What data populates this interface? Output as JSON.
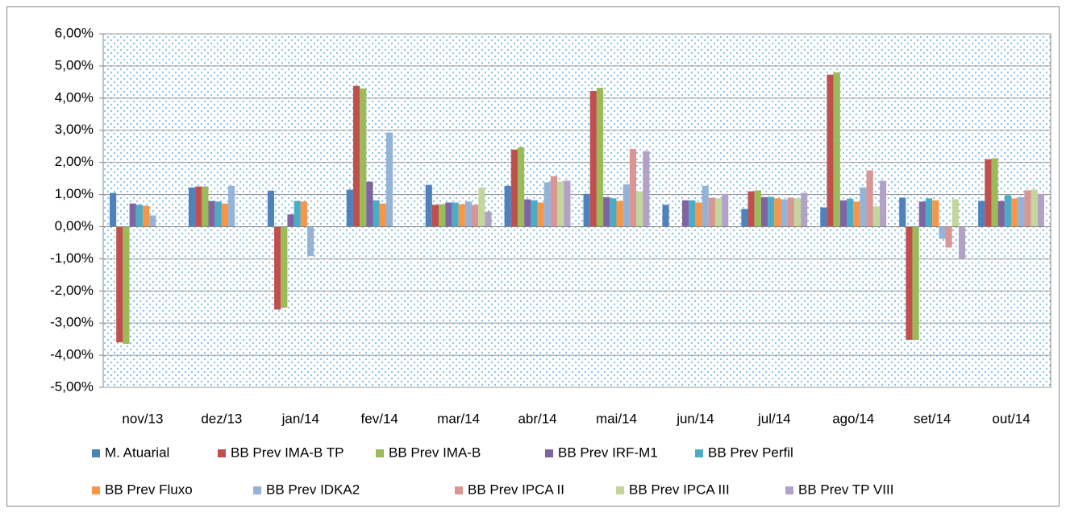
{
  "chart_data": {
    "type": "bar",
    "categories": [
      "nov/13",
      "dez/13",
      "jan/14",
      "fev/14",
      "mar/14",
      "abr/14",
      "mai/14",
      "jun/14",
      "jul/14",
      "ago/14",
      "set/14",
      "out/14"
    ],
    "series": [
      {
        "name": "M. Atuarial",
        "color": "#4f81bd",
        "values": [
          1.05,
          1.22,
          1.12,
          1.15,
          1.3,
          1.27,
          1.02,
          0.68,
          0.55,
          0.6,
          0.9,
          0.8
        ]
      },
      {
        "name": "BB Prev IMA-B TP",
        "color": "#c0504d",
        "values": [
          -3.6,
          1.25,
          -2.58,
          4.38,
          0.68,
          2.4,
          4.22,
          null,
          1.1,
          4.73,
          -3.52,
          2.1
        ]
      },
      {
        "name": "BB Prev IMA-B",
        "color": "#9bbb59",
        "values": [
          -3.65,
          1.25,
          -2.52,
          4.3,
          0.7,
          2.47,
          4.32,
          null,
          1.13,
          4.8,
          -3.52,
          2.13
        ]
      },
      {
        "name": "BB Prev IRF-M1",
        "color": "#8064a2",
        "values": [
          0.72,
          0.8,
          0.38,
          1.4,
          0.75,
          0.85,
          0.92,
          0.82,
          0.92,
          0.82,
          0.78,
          0.8
        ]
      },
      {
        "name": "BB Prev Perfil",
        "color": "#4bacc6",
        "values": [
          0.68,
          0.78,
          0.8,
          0.82,
          0.75,
          0.82,
          0.88,
          0.82,
          0.93,
          0.87,
          0.88,
          0.98
        ]
      },
      {
        "name": "BB Prev Fluxo",
        "color": "#f79646",
        "values": [
          0.65,
          0.72,
          0.78,
          0.72,
          0.7,
          0.75,
          0.8,
          0.75,
          0.88,
          0.78,
          0.82,
          0.88
        ]
      },
      {
        "name": "BB Prev IDKA2",
        "color": "#95b3d7",
        "values": [
          0.35,
          1.27,
          -0.92,
          2.93,
          0.78,
          1.38,
          1.32,
          1.27,
          0.85,
          1.22,
          -0.38,
          0.92
        ]
      },
      {
        "name": "BB Prev IPCA II",
        "color": "#d99694",
        "values": [
          null,
          null,
          null,
          null,
          0.68,
          1.57,
          2.42,
          0.9,
          0.9,
          1.75,
          -0.65,
          1.13
        ]
      },
      {
        "name": "BB Prev IPCA III",
        "color": "#c3d69b",
        "values": [
          null,
          null,
          null,
          null,
          1.22,
          1.4,
          1.1,
          0.88,
          0.88,
          0.63,
          0.85,
          1.15
        ]
      },
      {
        "name": "BB Prev TP VIII",
        "color": "#b3a2c7",
        "values": [
          null,
          null,
          null,
          null,
          0.47,
          1.43,
          2.35,
          1.02,
          1.05,
          1.43,
          -1.02,
          1.02
        ]
      }
    ],
    "ylim": [
      -5,
      6
    ],
    "yticks": [
      {
        "value": -5,
        "label": "-5,00%"
      },
      {
        "value": -4,
        "label": "-4,00%"
      },
      {
        "value": -3,
        "label": "-3,00%"
      },
      {
        "value": -2,
        "label": "-2,00%"
      },
      {
        "value": -1,
        "label": "-1,00%"
      },
      {
        "value": 0,
        "label": "0,00%"
      },
      {
        "value": 1,
        "label": "1,00%"
      },
      {
        "value": 2,
        "label": "2,00%"
      },
      {
        "value": 3,
        "label": "3,00%"
      },
      {
        "value": 4,
        "label": "4,00%"
      },
      {
        "value": 5,
        "label": "5,00%"
      },
      {
        "value": 6,
        "label": "6,00%"
      }
    ],
    "grid": true,
    "legend": "bottom"
  }
}
